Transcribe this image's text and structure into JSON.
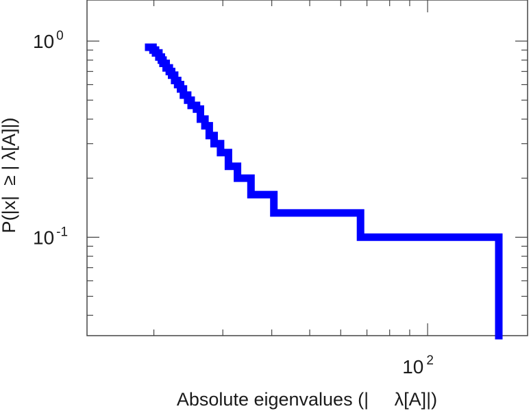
{
  "chart_data": {
    "type": "line",
    "subtype": "step (complementary cumulative distribution)",
    "xscale": "log",
    "yscale": "log",
    "xlim": [
      13.5,
      180
    ],
    "ylim": [
      0.0315,
      1.62
    ],
    "grid": false,
    "legend": "none",
    "line_color": "#0000ff",
    "xlabel": "Absolute eigenvalues (|     λ[A]|)",
    "ylabel": "P(|x|  ≥ | λ[A]|)",
    "x_ticks": [
      {
        "base": "10",
        "exp": "2",
        "value": 100
      }
    ],
    "y_ticks": [
      {
        "base": "10",
        "exp": "0",
        "value": 1
      },
      {
        "base": "10",
        "exp": "-1",
        "value": 0.1
      }
    ],
    "series": [
      {
        "x": [
          19.4,
          19.9,
          20.2,
          20.6,
          20.9,
          21.1,
          21.5,
          21.9,
          22.2,
          22.6,
          23.0,
          23.4,
          23.8,
          24.4,
          24.9,
          25.7,
          26.3,
          27.0,
          27.7,
          28.5,
          29.6,
          31.0,
          32.7,
          35.4,
          40.5,
          67.4,
          152.0
        ],
        "y": [
          0.93,
          0.9,
          0.87,
          0.83,
          0.8,
          0.77,
          0.73,
          0.7,
          0.67,
          0.63,
          0.6,
          0.57,
          0.53,
          0.5,
          0.47,
          0.45,
          0.4,
          0.37,
          0.33,
          0.3,
          0.27,
          0.23,
          0.2,
          0.165,
          0.133,
          0.1,
          0.067
        ],
        "y_last": 0.033
      }
    ]
  }
}
